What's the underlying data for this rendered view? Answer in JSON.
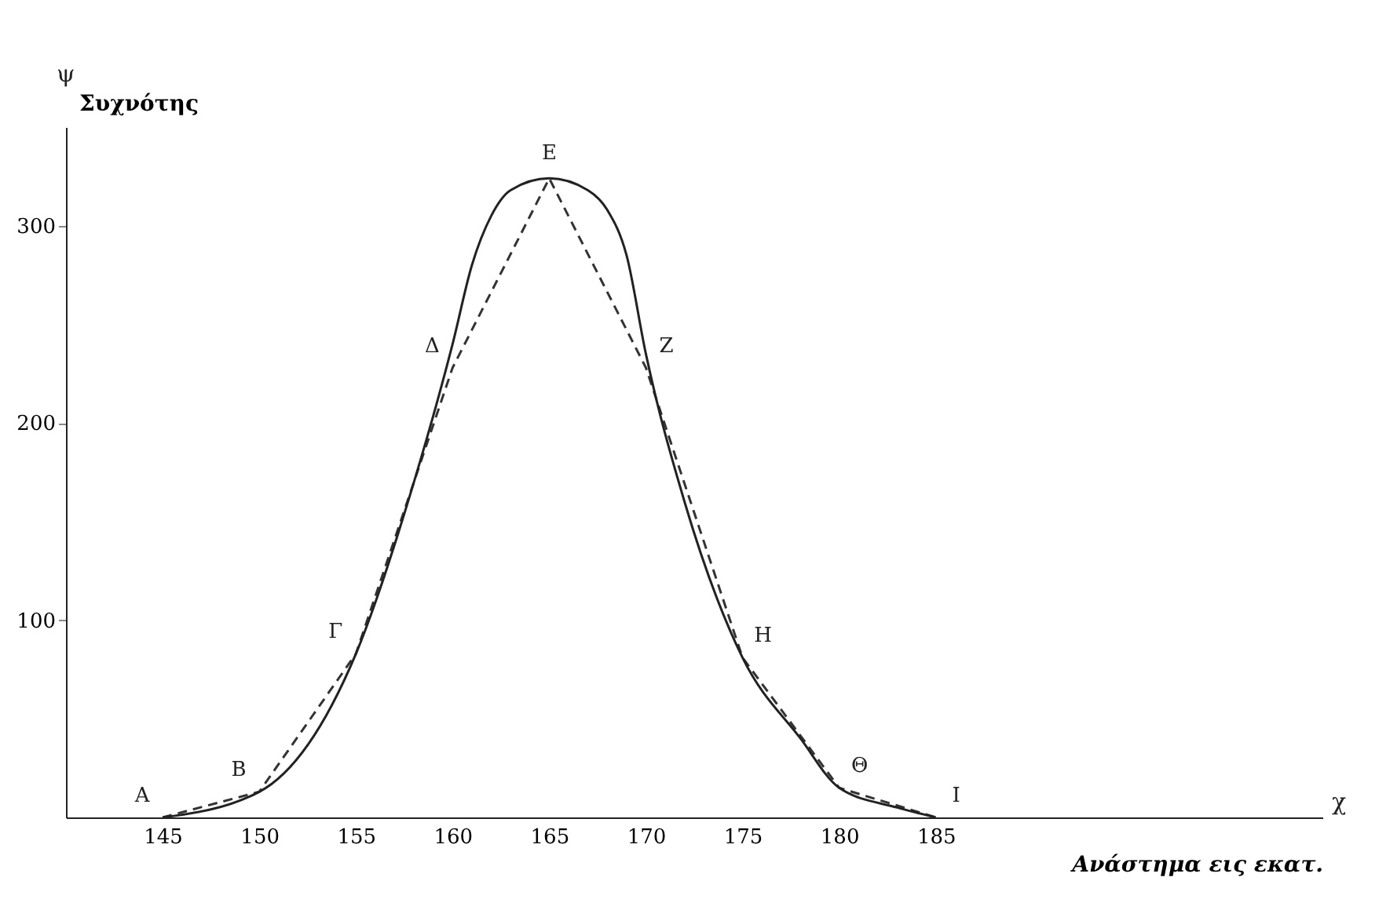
{
  "chart_data": {
    "type": "line",
    "xlabel": "Ανάστημα εις εκατ.",
    "ylabel": "Συχνότης",
    "xlim": [
      140,
      205
    ],
    "xticks": [
      145,
      150,
      155,
      160,
      165,
      170,
      175,
      180,
      185
    ],
    "ylim": [
      0,
      350
    ],
    "yticks": [
      100,
      200,
      300
    ],
    "series": [
      {
        "color": "#333333",
        "line_style": "dashed",
        "x": [
          145,
          150,
          155,
          160,
          165,
          170,
          175,
          180,
          185
        ],
        "values": [
          0,
          13,
          83,
          228,
          324,
          228,
          81,
          15,
          0
        ]
      },
      {
        "color": "#222222",
        "line_style": "solid",
        "x": [
          145,
          150,
          155,
          158,
          160,
          161,
          162,
          163,
          165,
          167,
          168,
          169,
          170,
          172,
          175,
          178,
          180,
          183,
          185
        ],
        "values": [
          0,
          13,
          83,
          170,
          240,
          280,
          305,
          318,
          324,
          318,
          308,
          285,
          235,
          160,
          81,
          40,
          15,
          5,
          0
        ]
      }
    ],
    "annotations": [
      "ψ",
      "χ",
      {
        "text": "A",
        "x": 145,
        "y": 0
      },
      {
        "text": "B",
        "x": 150,
        "y": 13
      },
      {
        "text": "Γ",
        "x": 155,
        "y": 83
      },
      {
        "text": "Δ",
        "x": 160,
        "y": 228
      },
      {
        "text": "E",
        "x": 165,
        "y": 324
      },
      {
        "text": "Z",
        "x": 170,
        "y": 228
      },
      {
        "text": "H",
        "x": 175,
        "y": 81
      },
      {
        "text": "Θ",
        "x": 180,
        "y": 15
      },
      {
        "text": "I",
        "x": 185,
        "y": 0
      }
    ],
    "grid": false
  }
}
